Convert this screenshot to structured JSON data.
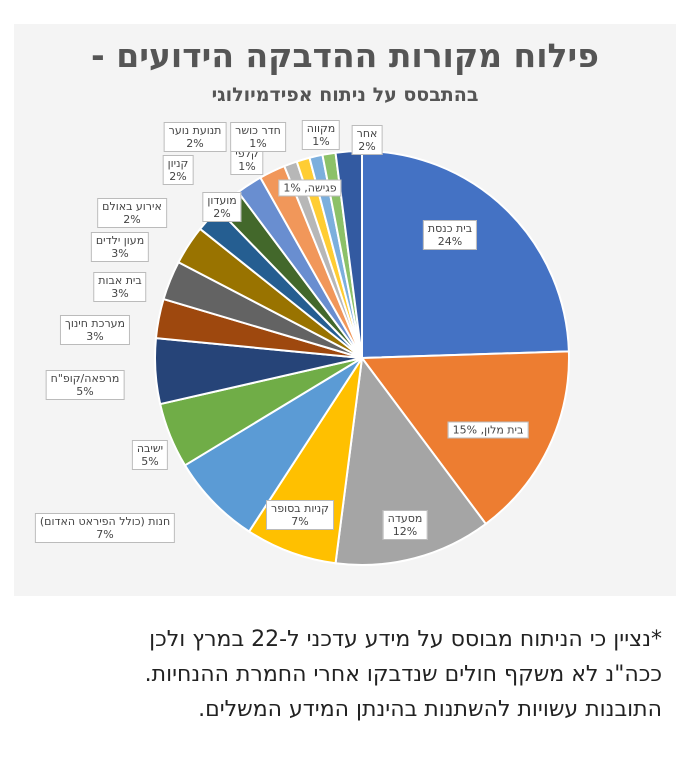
{
  "chart_data": {
    "type": "pie",
    "title": "פילוח מקורות ההדבקה הידועים -",
    "subtitle": "בהתבסס על ניתוח אפידמיולוגי",
    "slices": [
      {
        "label": "בית כנסת",
        "value": 24,
        "color": "#4472C4"
      },
      {
        "label": "בית מלון",
        "value": 15,
        "color": "#ED7D31"
      },
      {
        "label": "מסעדה",
        "value": 12,
        "color": "#A5A5A5"
      },
      {
        "label": "קניות בסופר",
        "value": 7,
        "color": "#FFC000"
      },
      {
        "label": "חנות (כולל הפיראט האדום)",
        "value": 7,
        "color": "#5B9BD5"
      },
      {
        "label": "ישיבה",
        "value": 5,
        "color": "#70AD47"
      },
      {
        "label": "מרפאה/קופ\"ח",
        "value": 5,
        "color": "#264478"
      },
      {
        "label": "מערכת חינוך",
        "value": 3,
        "color": "#9E480E"
      },
      {
        "label": "בית אבות",
        "value": 3,
        "color": "#636363"
      },
      {
        "label": "מעון ילדים",
        "value": 3,
        "color": "#997300"
      },
      {
        "label": "אירוע באולם",
        "value": 2,
        "color": "#255E91"
      },
      {
        "label": "מועדון",
        "value": 2,
        "color": "#43682B"
      },
      {
        "label": "קניון",
        "value": 2,
        "color": "#698ED0"
      },
      {
        "label": "תנועת נוער",
        "value": 2,
        "color": "#F1975A"
      },
      {
        "label": "קלפי",
        "value": 1,
        "color": "#B7B7B7"
      },
      {
        "label": "חדר כושר",
        "value": 1,
        "color": "#FFCD33"
      },
      {
        "label": "פגישה",
        "value": 1,
        "color": "#7CAFDD"
      },
      {
        "label": "מקווה",
        "value": 1,
        "color": "#8CC168"
      },
      {
        "label": "אחר",
        "value": 2,
        "color": "#335AA1"
      }
    ]
  },
  "footnote": [
    "*נציין כי הניתוח מבוסס על מידע עדכני ל-22 במרץ ולכן",
    "ככה\"נ לא משקף חולים שנדבקו אחרי החמרת ההנחיות.",
    "התובנות עשויות להשתנות בהינתן המידע המשלים."
  ]
}
